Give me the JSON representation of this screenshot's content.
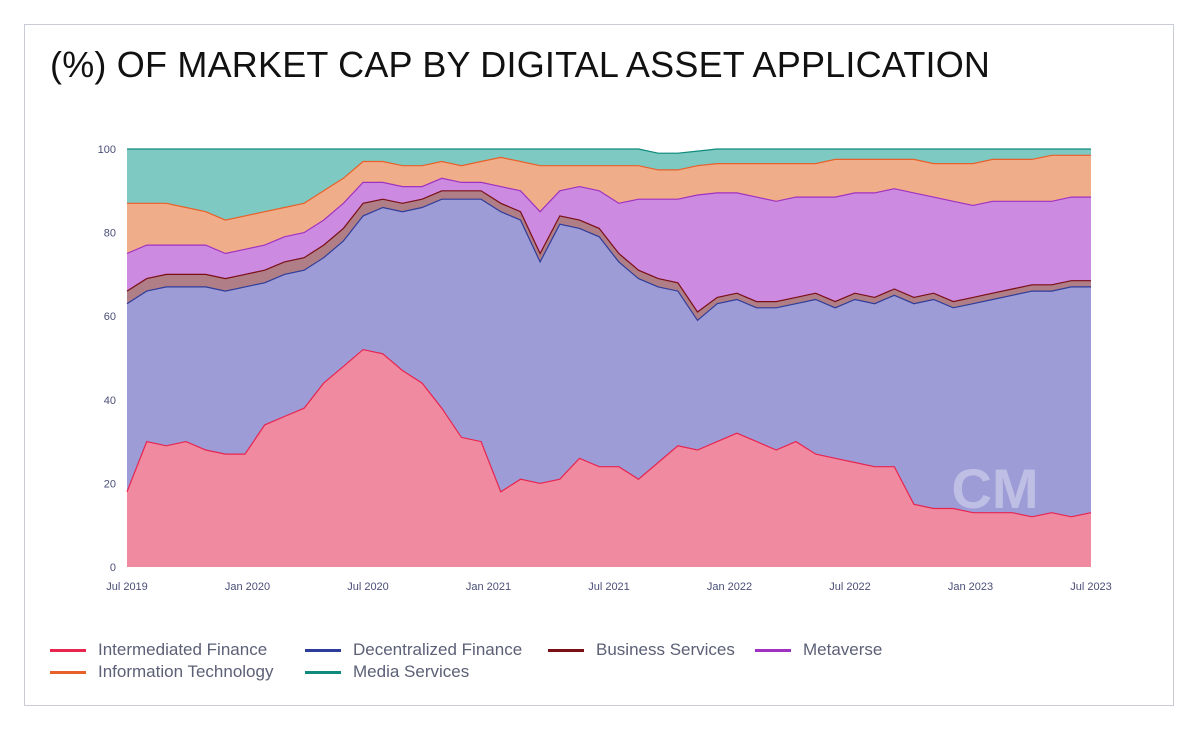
{
  "title": "(%) OF MARKET CAP BY DIGITAL ASSET APPLICATION",
  "watermark": "CM",
  "chart_data": {
    "type": "area",
    "stacked": true,
    "ylim": [
      0,
      100
    ],
    "y_ticks": [
      "0",
      "20",
      "40",
      "60",
      "80",
      "100"
    ],
    "x_ticks": [
      "Jul 2019",
      "Jan 2020",
      "Jul 2020",
      "Jan 2021",
      "Jul 2021",
      "Jan 2022",
      "Jul 2022",
      "Jan 2023",
      "Jul 2023"
    ],
    "x": [
      "2019-07",
      "2019-08",
      "2019-09",
      "2019-10",
      "2019-11",
      "2019-12",
      "2020-01",
      "2020-02",
      "2020-03",
      "2020-04",
      "2020-05",
      "2020-06",
      "2020-07",
      "2020-08",
      "2020-09",
      "2020-10",
      "2020-11",
      "2020-12",
      "2021-01",
      "2021-02",
      "2021-03",
      "2021-04",
      "2021-05",
      "2021-06",
      "2021-07",
      "2021-08",
      "2021-09",
      "2021-10",
      "2021-11",
      "2021-12",
      "2022-01",
      "2022-02",
      "2022-03",
      "2022-04",
      "2022-05",
      "2022-06",
      "2022-07",
      "2022-08",
      "2022-09",
      "2022-10",
      "2022-11",
      "2022-12",
      "2023-01",
      "2023-02",
      "2023-03",
      "2023-04",
      "2023-05",
      "2023-06",
      "2023-07",
      "2023-08"
    ],
    "series": [
      {
        "name": "Intermediated Finance",
        "color": "#e8254f",
        "fill": "#f08aa0",
        "values": [
          18,
          30,
          29,
          30,
          28,
          27,
          27,
          34,
          36,
          38,
          44,
          48,
          52,
          51,
          47,
          44,
          38,
          31,
          30,
          18,
          21,
          20,
          21,
          26,
          24,
          24,
          21,
          25,
          29,
          28,
          30,
          32,
          30,
          28,
          30,
          27,
          26,
          25,
          24,
          24,
          15,
          14,
          14,
          13,
          13,
          13,
          12,
          13,
          12,
          13
        ]
      },
      {
        "name": "Decentralized Finance",
        "color": "#2f3d9a",
        "fill": "#9d9cd6",
        "values": [
          45,
          36,
          38,
          37,
          39,
          39,
          40,
          34,
          34,
          33,
          30,
          30,
          32,
          35,
          38,
          42,
          50,
          57,
          58,
          67,
          62,
          53,
          61,
          55,
          55,
          49,
          48,
          42,
          37,
          31,
          33,
          32,
          32,
          34,
          33,
          37,
          36,
          39,
          39,
          41,
          48,
          50,
          48,
          50,
          51,
          52,
          54,
          53,
          55,
          54
        ]
      },
      {
        "name": "Business Services",
        "color": "#7a0f16",
        "fill": "#b07e86",
        "values": [
          3,
          3,
          3,
          3,
          3,
          3,
          3,
          3,
          3,
          3,
          3,
          3,
          3,
          2,
          2,
          2,
          2,
          2,
          2,
          2,
          2,
          2,
          2,
          2,
          2,
          2,
          2,
          2,
          2,
          2,
          1.5,
          1.5,
          1.5,
          1.5,
          1.5,
          1.5,
          1.5,
          1.5,
          1.5,
          1.5,
          1.5,
          1.5,
          1.5,
          1.5,
          1.5,
          1.5,
          1.5,
          1.5,
          1.5,
          1.5
        ]
      },
      {
        "name": "Metaverse",
        "color": "#a032c2",
        "fill": "#cc8be0",
        "values": [
          9,
          8,
          7,
          7,
          7,
          6,
          6,
          6,
          6,
          6,
          6,
          6,
          5,
          4,
          4,
          3,
          3,
          2,
          2,
          4,
          5,
          10,
          6,
          8,
          9,
          12,
          17,
          19,
          20,
          28,
          25,
          24,
          25,
          24,
          24,
          23,
          25,
          24,
          25,
          24,
          25,
          23,
          24,
          22,
          22,
          21,
          20,
          20,
          20,
          20
        ]
      },
      {
        "name": "Information Technology",
        "color": "#e8612a",
        "fill": "#f0ad8a",
        "values": [
          12,
          10,
          10,
          9,
          8,
          8,
          8,
          8,
          7,
          7,
          7,
          6,
          5,
          5,
          5,
          5,
          4,
          4,
          5,
          7,
          7,
          11,
          6,
          5,
          6,
          9,
          8,
          7,
          7,
          7,
          7,
          7,
          8,
          9,
          8,
          8,
          9,
          8,
          8,
          7,
          8,
          8,
          9,
          10,
          10,
          10,
          10,
          11,
          10,
          10
        ]
      },
      {
        "name": "Media Services",
        "color": "#0f8a7c",
        "fill": "#7ec9c1",
        "values": [
          13,
          13,
          13,
          14,
          15,
          17,
          16,
          15,
          14,
          13,
          10,
          7,
          3,
          3,
          4,
          4,
          3,
          4,
          3,
          2,
          3,
          4,
          4,
          4,
          4,
          4,
          4,
          4,
          4,
          3.5,
          3.5,
          3.5,
          3.5,
          3.5,
          3.5,
          3.5,
          2.5,
          2.5,
          2.5,
          2.5,
          2.5,
          3.5,
          3.5,
          3.5,
          2.5,
          2.5,
          2.5,
          1.5,
          1.5,
          1.5
        ]
      }
    ],
    "legend_position": "bottom"
  }
}
